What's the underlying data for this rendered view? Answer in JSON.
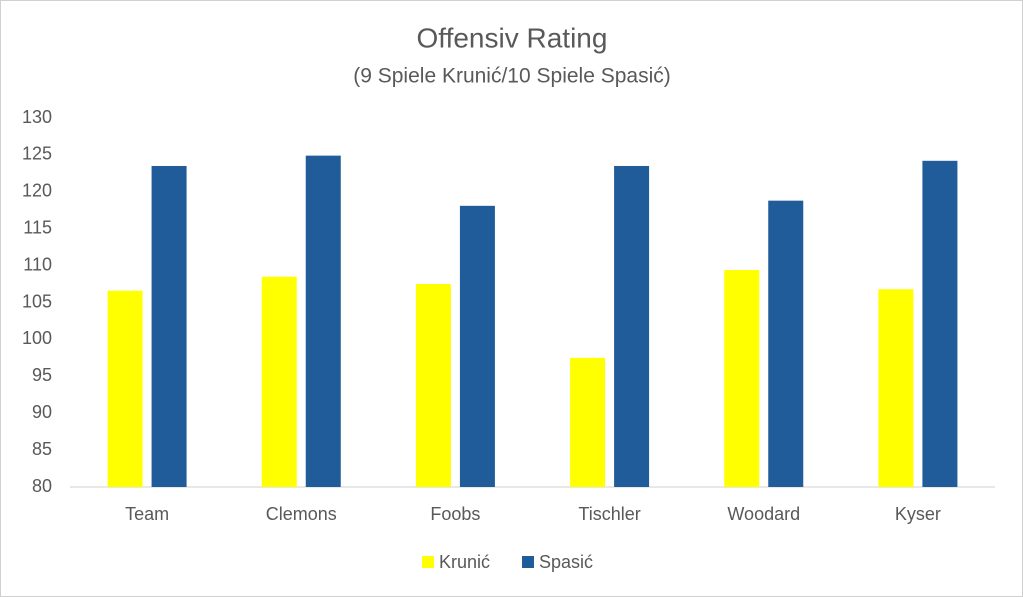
{
  "chart_data": {
    "type": "bar",
    "title": "Offensiv Rating",
    "subtitle": "(9 Spiele Krunić/10 Spiele Spasić)",
    "categories": [
      "Team",
      "Clemons",
      "Foobs",
      "Tischler",
      "Woodard",
      "Kyser"
    ],
    "series": [
      {
        "name": "Krunić",
        "color": "#ffff00",
        "values": [
          106.6,
          108.5,
          107.5,
          97.5,
          109.4,
          106.8
        ]
      },
      {
        "name": "Spasić",
        "color": "#1f5c99",
        "values": [
          123.5,
          124.9,
          118.1,
          123.5,
          118.8,
          124.2
        ]
      }
    ],
    "ylim": [
      80,
      130
    ],
    "yticks": [
      80,
      85,
      90,
      95,
      100,
      105,
      110,
      115,
      120,
      125,
      130
    ],
    "grid": false,
    "legend": "bottom"
  }
}
